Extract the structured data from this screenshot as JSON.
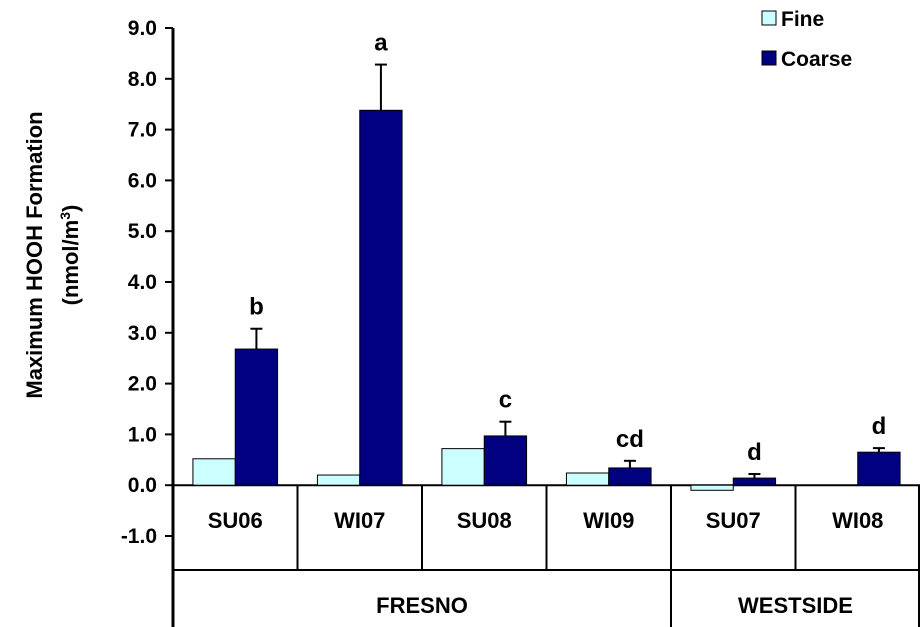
{
  "chart_data": {
    "type": "bar",
    "ylabel_line1": "Maximum HOOH Formation",
    "ylabel_line2_main": "(nmol/m",
    "ylabel_line2_sup": "3",
    "ylabel_line2_close": ")",
    "ylim": [
      -1.0,
      9.0
    ],
    "yticks": [
      "9.0",
      "8.0",
      "7.0",
      "6.0",
      "5.0",
      "4.0",
      "3.0",
      "2.0",
      "1.0",
      "0.0",
      "-1.0"
    ],
    "ytick_values": [
      9,
      8,
      7,
      6,
      5,
      4,
      3,
      2,
      1,
      0,
      -1
    ],
    "categories": [
      "SU06",
      "WI07",
      "SU08",
      "WI09",
      "SU07",
      "WI08"
    ],
    "groups": [
      {
        "label": "FRESNO",
        "span": [
          0,
          3
        ]
      },
      {
        "label": "WESTSIDE",
        "span": [
          4,
          5
        ]
      }
    ],
    "series": [
      {
        "name": "Fine",
        "color": "#ccffff",
        "values": [
          0.52,
          0.2,
          0.72,
          0.24,
          -0.1,
          null
        ],
        "errors": [
          null,
          null,
          null,
          null,
          null,
          null
        ]
      },
      {
        "name": "Coarse",
        "color": "#000080",
        "values": [
          2.68,
          7.38,
          0.97,
          0.34,
          0.14,
          0.65
        ],
        "errors": [
          0.4,
          0.9,
          0.28,
          0.14,
          0.08,
          0.08
        ]
      }
    ],
    "significance_letters": [
      "b",
      "a",
      "c",
      "cd",
      "d",
      "d"
    ],
    "legend_position": "top-right",
    "grid": false
  }
}
